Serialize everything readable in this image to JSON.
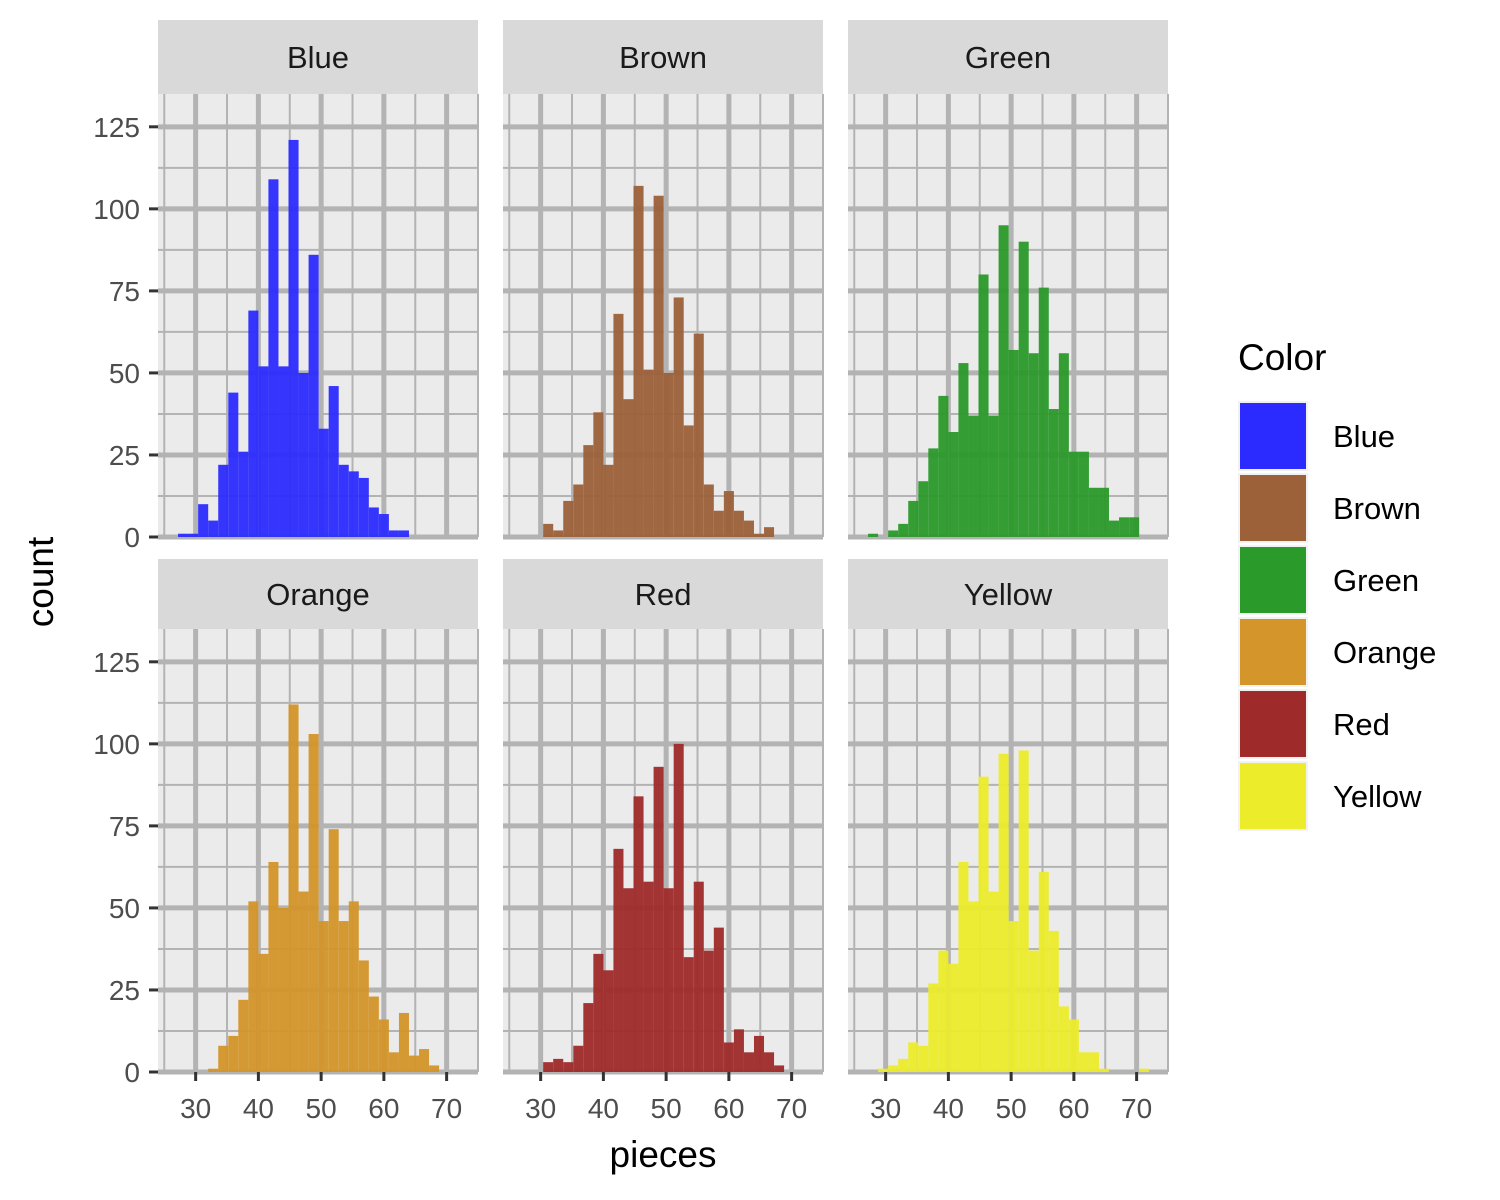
{
  "chart_data": {
    "type": "bar",
    "subtype": "faceted-histogram",
    "xlabel": "pieces",
    "ylabel": "count",
    "x_ticks": [
      30,
      40,
      50,
      60,
      70
    ],
    "y_ticks": [
      0,
      25,
      50,
      75,
      100,
      125
    ],
    "xlim": [
      24,
      75
    ],
    "ylim": [
      0,
      135
    ],
    "bin_width": 1.6,
    "bin_start": 27.2,
    "legend": {
      "title": "Color",
      "placement": "right",
      "entries": [
        {
          "label": "Blue",
          "color": "#2b2bff"
        },
        {
          "label": "Brown",
          "color": "#9c6139"
        },
        {
          "label": "Green",
          "color": "#2a9a2a"
        },
        {
          "label": "Orange",
          "color": "#d4952a"
        },
        {
          "label": "Red",
          "color": "#9e2a2a"
        },
        {
          "label": "Yellow",
          "color": "#ecec2a"
        }
      ]
    },
    "panels": [
      {
        "name": "Blue",
        "color": "#2b2bff",
        "values": [
          1,
          1,
          10,
          5,
          22,
          44,
          26,
          69,
          52,
          109,
          52,
          121,
          50,
          86,
          33,
          46,
          22,
          20,
          18,
          9,
          7,
          2,
          2
        ]
      },
      {
        "name": "Brown",
        "color": "#9c6139",
        "values": [
          0,
          0,
          4,
          2,
          11,
          16,
          28,
          38,
          22,
          68,
          42,
          107,
          51,
          104,
          50,
          73,
          34,
          62,
          16,
          8,
          14,
          8,
          5,
          1,
          3,
          0,
          0,
          0,
          0,
          0,
          0,
          0,
          0,
          0,
          0,
          0,
          0,
          2
        ]
      },
      {
        "name": "Green",
        "color": "#2a9a2a",
        "values": [
          1,
          0,
          2,
          4,
          11,
          17,
          27,
          43,
          32,
          53,
          37,
          80,
          37,
          95,
          57,
          90,
          56,
          76,
          39,
          56,
          26,
          26,
          15,
          15,
          5,
          6,
          6,
          0,
          0,
          0,
          0,
          0,
          0,
          0,
          0,
          0,
          0,
          0,
          1
        ]
      },
      {
        "name": "Orange",
        "color": "#d4952a",
        "values": [
          0,
          0,
          0,
          1,
          8,
          11,
          22,
          52,
          36,
          64,
          50,
          112,
          55,
          103,
          46,
          74,
          46,
          52,
          34,
          23,
          16,
          6,
          18,
          5,
          7,
          2,
          0,
          0,
          0,
          0,
          0,
          0,
          0,
          0,
          0,
          1
        ]
      },
      {
        "name": "Red",
        "color": "#9e2a2a",
        "values": [
          0,
          0,
          3,
          4,
          3,
          8,
          21,
          36,
          31,
          68,
          56,
          84,
          58,
          93,
          56,
          100,
          35,
          58,
          37,
          44,
          9,
          13,
          6,
          11,
          6,
          2
        ]
      },
      {
        "name": "Yellow",
        "color": "#ecec2a",
        "values": [
          0,
          1,
          2,
          4,
          9,
          8,
          27,
          37,
          33,
          64,
          52,
          90,
          55,
          97,
          46,
          98,
          37,
          61,
          43,
          20,
          16,
          6,
          6,
          1,
          0,
          0,
          0,
          1
        ]
      }
    ]
  }
}
